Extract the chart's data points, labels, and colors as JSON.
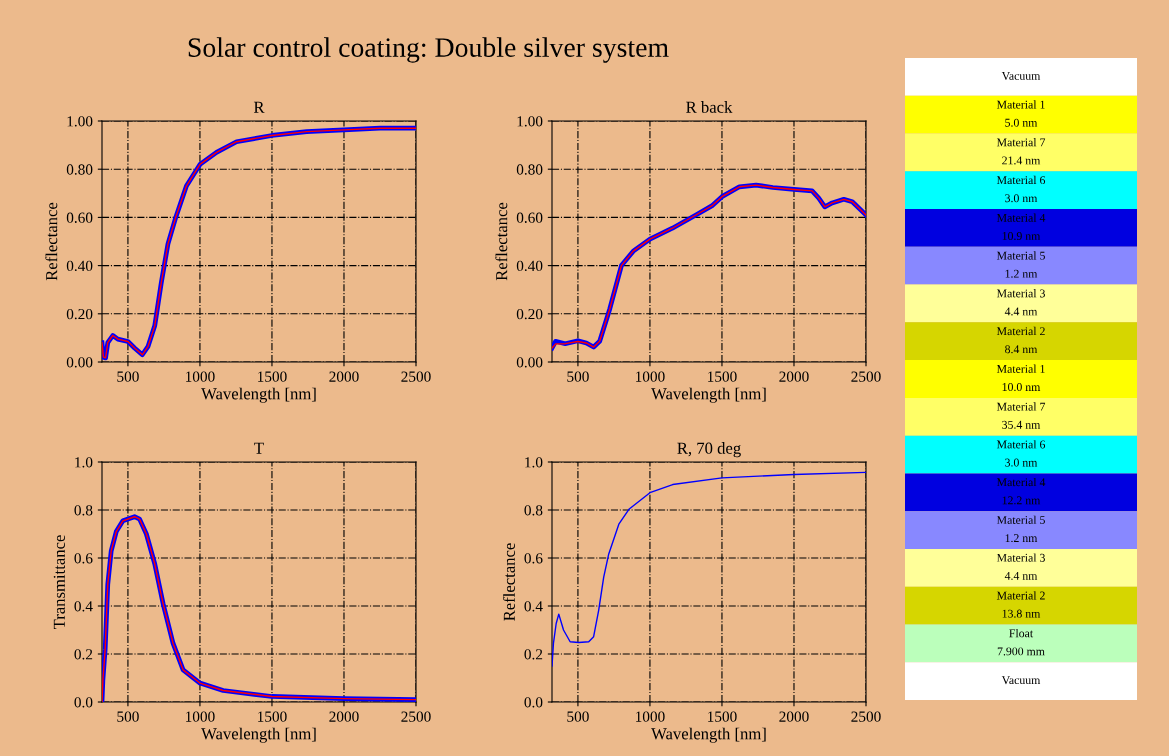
{
  "chart_data": [
    {
      "type": "line",
      "title": "R",
      "xlabel": "Wavelength [nm]",
      "ylabel": "Reflectance",
      "xlim": [
        320,
        2500
      ],
      "xticks": [
        500,
        1000,
        1500,
        2000,
        2500
      ],
      "ylim": [
        0,
        1
      ],
      "yticks": [
        {
          "value": 0,
          "label": "0.00"
        },
        {
          "value": 0.2,
          "label": "0.20"
        },
        {
          "value": 0.4,
          "label": "0.40"
        },
        {
          "value": 0.6,
          "label": "0.60"
        },
        {
          "value": 0.8,
          "label": "0.80"
        },
        {
          "value": 1,
          "label": "1.00"
        }
      ],
      "grid": true,
      "x": [
        320,
        330,
        345,
        360,
        395,
        430,
        500,
        546,
        600,
        640,
        686,
        732,
        778,
        832,
        906,
        1000,
        1115,
        1254,
        1500,
        1741,
        2000,
        2250,
        2500
      ],
      "series": [
        {
          "color": "#0000ff",
          "values": [
            0.08,
            0.02,
            0.017,
            0.08,
            0.11,
            0.095,
            0.085,
            0.058,
            0.03,
            0.065,
            0.15,
            0.33,
            0.49,
            0.6,
            0.73,
            0.82,
            0.87,
            0.914,
            0.94,
            0.956,
            0.963,
            0.97,
            0.97
          ]
        },
        {
          "color": "#ff0000",
          "values": [
            0.08,
            0.02,
            0.017,
            0.08,
            0.11,
            0.095,
            0.085,
            0.058,
            0.03,
            0.065,
            0.15,
            0.33,
            0.49,
            0.6,
            0.73,
            0.82,
            0.87,
            0.914,
            0.94,
            0.956,
            0.963,
            0.97,
            0.97
          ]
        }
      ]
    },
    {
      "type": "line",
      "title": "R back",
      "xlabel": "Wavelength [nm]",
      "ylabel": "Reflectance",
      "xlim": [
        320,
        2500
      ],
      "xticks": [
        500,
        1000,
        1500,
        2000,
        2500
      ],
      "ylim": [
        0,
        1
      ],
      "yticks": [
        {
          "value": 0,
          "label": "0.00"
        },
        {
          "value": 0.2,
          "label": "0.20"
        },
        {
          "value": 0.4,
          "label": "0.40"
        },
        {
          "value": 0.6,
          "label": "0.60"
        },
        {
          "value": 0.8,
          "label": "0.80"
        },
        {
          "value": 1,
          "label": "1.00"
        }
      ],
      "grid": true,
      "x": [
        320,
        345,
        412,
        500,
        558,
        609,
        651,
        721,
        802,
        884,
        1000,
        1156,
        1319,
        1435,
        1500,
        1621,
        1737,
        1853,
        2000,
        2126,
        2172,
        2214,
        2265,
        2346,
        2405,
        2500
      ],
      "series": [
        {
          "color": "#0000ff",
          "values": [
            0.058,
            0.086,
            0.076,
            0.088,
            0.079,
            0.062,
            0.086,
            0.22,
            0.4,
            0.46,
            0.51,
            0.555,
            0.61,
            0.65,
            0.686,
            0.727,
            0.734,
            0.724,
            0.716,
            0.71,
            0.68,
            0.644,
            0.66,
            0.675,
            0.665,
            0.61
          ]
        },
        {
          "color": "#ff0000",
          "values": [
            0.058,
            0.075,
            0.076,
            0.085,
            0.079,
            0.062,
            0.086,
            0.22,
            0.4,
            0.46,
            0.51,
            0.555,
            0.61,
            0.65,
            0.686,
            0.727,
            0.734,
            0.724,
            0.716,
            0.71,
            0.68,
            0.644,
            0.66,
            0.675,
            0.665,
            0.61
          ]
        }
      ]
    },
    {
      "type": "line",
      "title": "T",
      "xlabel": "Wavelength [nm]",
      "ylabel": "Transmittance",
      "xlim": [
        320,
        2500
      ],
      "xticks": [
        500,
        1000,
        1500,
        2000,
        2500
      ],
      "ylim": [
        0,
        1
      ],
      "yticks": [
        {
          "value": 0,
          "label": "0.0"
        },
        {
          "value": 0.2,
          "label": "0.2"
        },
        {
          "value": 0.4,
          "label": "0.4"
        },
        {
          "value": 0.6,
          "label": "0.6"
        },
        {
          "value": 0.8,
          "label": "0.8"
        },
        {
          "value": 1,
          "label": "1.0"
        }
      ],
      "grid": true,
      "x": [
        320,
        326,
        342,
        360,
        384,
        419,
        465,
        546,
        581,
        628,
        686,
        744,
        813,
        883,
        1000,
        1161,
        1500,
        2000,
        2500
      ],
      "series": [
        {
          "color": "#0000ff",
          "values": [
            0.0,
            0.09,
            0.22,
            0.49,
            0.63,
            0.71,
            0.755,
            0.772,
            0.762,
            0.7,
            0.576,
            0.41,
            0.245,
            0.134,
            0.079,
            0.048,
            0.023,
            0.014,
            0.01
          ]
        },
        {
          "color": "#ff0000",
          "values": [
            0.0,
            0.09,
            0.22,
            0.49,
            0.63,
            0.71,
            0.755,
            0.772,
            0.762,
            0.7,
            0.576,
            0.41,
            0.245,
            0.134,
            0.079,
            0.048,
            0.023,
            0.014,
            0.01
          ]
        }
      ]
    },
    {
      "type": "line",
      "title": "R, 70 deg",
      "xlabel": "Wavelength [nm]",
      "ylabel": "Reflectance",
      "xlim": [
        320,
        2500
      ],
      "xticks": [
        500,
        1000,
        1500,
        2000,
        2500
      ],
      "ylim": [
        0,
        1
      ],
      "yticks": [
        {
          "value": 0,
          "label": "0.0"
        },
        {
          "value": 0.2,
          "label": "0.2"
        },
        {
          "value": 0.4,
          "label": "0.4"
        },
        {
          "value": 0.6,
          "label": "0.6"
        },
        {
          "value": 0.8,
          "label": "0.8"
        },
        {
          "value": 1,
          "label": "1.0"
        }
      ],
      "grid": true,
      "x": [
        320,
        330,
        349,
        367,
        400,
        446,
        505,
        575,
        609,
        644,
        679,
        714,
        784,
        854,
        1000,
        1158,
        1500,
        2000,
        2500
      ],
      "series": [
        {
          "color": "#0000ff",
          "values": [
            0.15,
            0.244,
            0.327,
            0.366,
            0.3,
            0.251,
            0.248,
            0.251,
            0.272,
            0.382,
            0.52,
            0.617,
            0.741,
            0.803,
            0.872,
            0.906,
            0.934,
            0.948,
            0.957
          ]
        }
      ]
    },
    {
      "type": "other",
      "title": "Solar control coating: Double silver system",
      "categories": [
        "Vacuum",
        "Material 1\n5.0 nm",
        "Material 7\n21.4 nm",
        "Material 6\n3.0 nm",
        "Material 4\n10.9 nm",
        "Material 5\n1.2 nm",
        "Material 3\n4.4 nm",
        "Material 2\n8.4 nm",
        "Material 1\n10.0 nm",
        "Material 7\n35.4 nm",
        "Material 6\n3.0 nm",
        "Material 4\n12.2 nm",
        "Material 5\n1.2 nm",
        "Material 3\n4.4 nm",
        "Material 2\n13.8 nm",
        "Float\n7.900 mm",
        "Vacuum"
      ],
      "colors": [
        "#ffffff",
        "#ffff00",
        "#ffff66",
        "#00ffff",
        "#0000e0",
        "#8888ff",
        "#ffff99",
        "#d6d600",
        "#ffff00",
        "#ffff66",
        "#00ffff",
        "#0000e0",
        "#8888ff",
        "#ffff99",
        "#d6d600",
        "#bbffbb",
        "#ffffff"
      ]
    }
  ]
}
